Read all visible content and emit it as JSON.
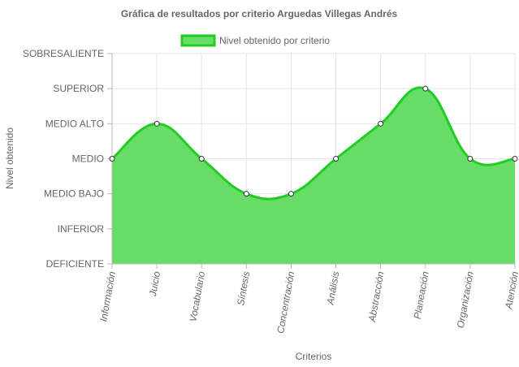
{
  "chart_data": {
    "type": "area",
    "title": "Gráfica de resultados por criterio Arguedas Villegas Andrés",
    "xlabel": "Criterios",
    "ylabel": "Nivel obtenido",
    "y_levels": [
      "DEFICIENTE",
      "INFERIOR",
      "MEDIO BAJO",
      "MEDIO",
      "MEDIO ALTO",
      "SUPERIOR",
      "SOBRESALIENTE"
    ],
    "categories": [
      "Información",
      "Juicio",
      "Vocabulario",
      "Síntesis",
      "Concentración",
      "Análisis",
      "Abstracción",
      "Planeación",
      "Organización",
      "Atención"
    ],
    "series": [
      {
        "name": "Nivel obtenido por criterio",
        "values": [
          "MEDIO",
          "MEDIO ALTO",
          "MEDIO",
          "MEDIO BAJO",
          "MEDIO BAJO",
          "MEDIO",
          "MEDIO ALTO",
          "SUPERIOR",
          "MEDIO",
          "MEDIO"
        ]
      }
    ],
    "legend_position": "top",
    "grid": true,
    "colors": {
      "fill": "#66dd66",
      "line": "#22cc22",
      "point_fill": "#ffffff",
      "point_stroke": "#333333"
    }
  }
}
